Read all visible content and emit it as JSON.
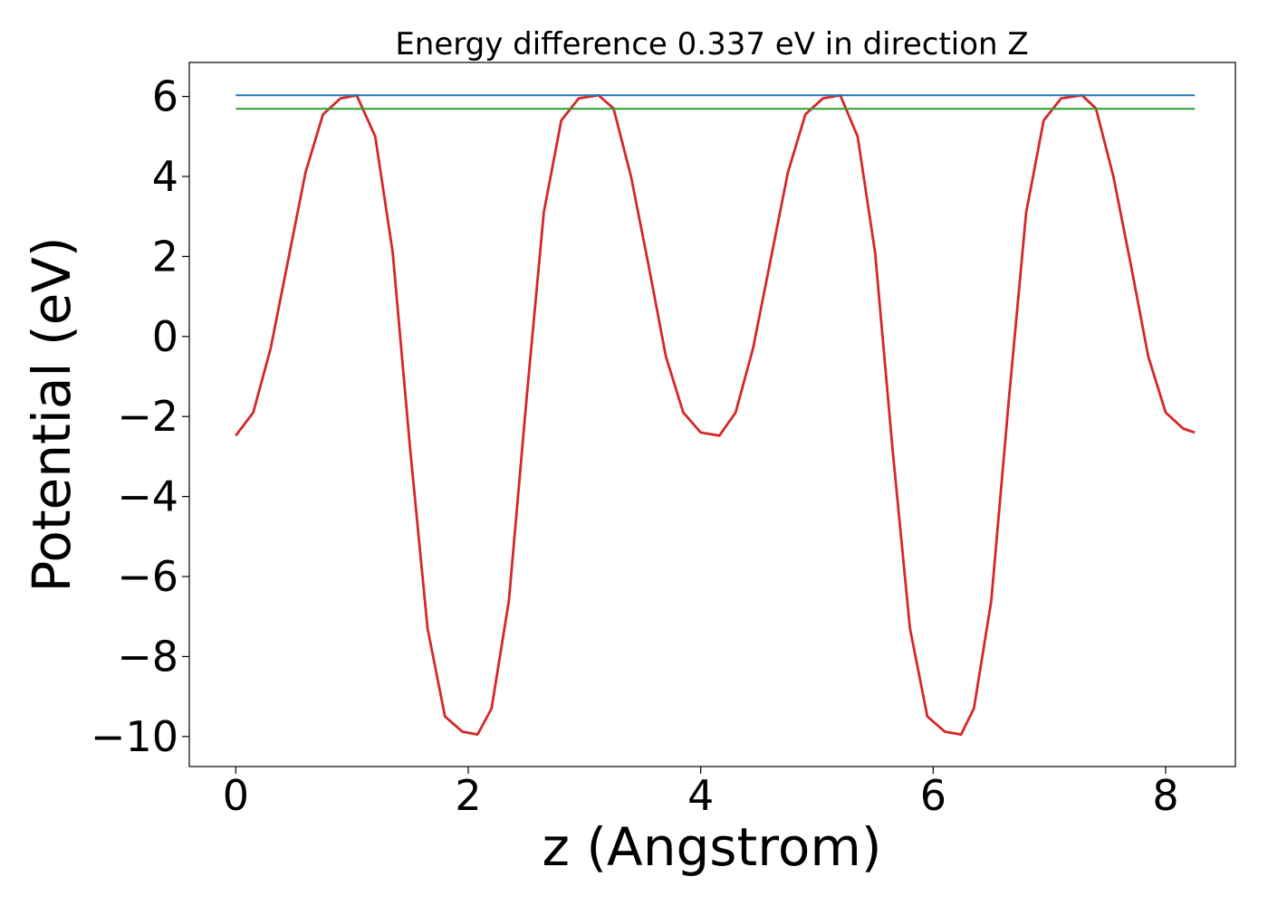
{
  "chart_data": {
    "type": "line",
    "title": "Energy difference 0.337 eV in direction Z",
    "xlabel": "z (Angstrom)",
    "ylabel": "Potential (eV)",
    "xlim": [
      -0.4,
      8.6
    ],
    "ylim": [
      -10.75,
      6.85
    ],
    "xticks": [
      0,
      2,
      4,
      6,
      8
    ],
    "xtick_labels": [
      "0",
      "2",
      "4",
      "6",
      "8"
    ],
    "yticks": [
      6,
      4,
      2,
      0,
      -2,
      -4,
      -6,
      -8,
      -10
    ],
    "ytick_labels": [
      "6",
      "4",
      "2",
      "0",
      "−2",
      "−4",
      "−6",
      "−8",
      "−10"
    ],
    "grid": false,
    "series": [
      {
        "color": "#d62728",
        "x": [
          0.0,
          0.15,
          0.3,
          0.45,
          0.6,
          0.75,
          0.9,
          1.04,
          1.2,
          1.35,
          1.5,
          1.65,
          1.8,
          1.95,
          2.08,
          2.2,
          2.35,
          2.5,
          2.65,
          2.8,
          2.95,
          3.12,
          3.25,
          3.4,
          3.55,
          3.7,
          3.85,
          4.0,
          4.16,
          4.3,
          4.45,
          4.6,
          4.75,
          4.9,
          5.05,
          5.2,
          5.35,
          5.5,
          5.65,
          5.8,
          5.95,
          6.1,
          6.24,
          6.35,
          6.5,
          6.65,
          6.8,
          6.95,
          7.1,
          7.28,
          7.4,
          7.55,
          7.7,
          7.85,
          8.0,
          8.15,
          8.25
        ],
        "y": [
          -2.48,
          -1.9,
          -0.3,
          1.9,
          4.1,
          5.55,
          5.95,
          6.03,
          5.0,
          2.1,
          -2.8,
          -7.3,
          -9.5,
          -9.88,
          -9.95,
          -9.3,
          -6.6,
          -1.6,
          3.1,
          5.4,
          5.95,
          6.03,
          5.7,
          4.0,
          1.8,
          -0.5,
          -1.9,
          -2.4,
          -2.48,
          -1.9,
          -0.3,
          1.9,
          4.1,
          5.55,
          5.95,
          6.03,
          5.0,
          2.1,
          -2.8,
          -7.3,
          -9.5,
          -9.88,
          -9.95,
          -9.3,
          -6.6,
          -1.6,
          3.1,
          5.4,
          5.95,
          6.03,
          5.7,
          4.0,
          1.8,
          -0.5,
          -1.9,
          -2.3,
          -2.4
        ]
      },
      {
        "color": "#1f77b4",
        "x": [
          0.0,
          8.25
        ],
        "y": [
          6.03,
          6.03
        ]
      },
      {
        "color": "#2ca02c",
        "x": [
          0.0,
          8.25
        ],
        "y": [
          5.69,
          5.69
        ]
      }
    ]
  }
}
